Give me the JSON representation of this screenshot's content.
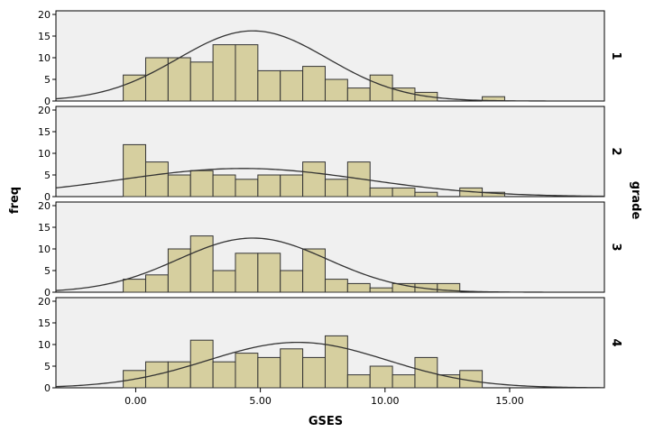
{
  "chart_data": {
    "type": "bar",
    "subtype": "faceted-histogram-with-normal-curve",
    "xlabel": "GSES",
    "ylabel": "freq",
    "facet_label": "grade",
    "xlim": [
      -3.2,
      18.8
    ],
    "ylim": [
      0,
      20
    ],
    "x_ticks": [
      0,
      5,
      10,
      15
    ],
    "x_tick_labels": [
      "0.00",
      "5.00",
      "10.00",
      "15.00"
    ],
    "y_ticks": [
      0,
      5,
      10,
      15,
      20
    ],
    "y_tick_labels": [
      "0",
      "5",
      "10",
      "15",
      "20"
    ],
    "bin_start": -0.5,
    "bin_width": 0.9,
    "colors": {
      "bar_fill": "#d6cf9f",
      "bar_stroke": "#333333",
      "panel_bg": "#f0f0f0",
      "curve": "#333333"
    },
    "panels": [
      {
        "label": "1",
        "counts": [
          6,
          10,
          10,
          9,
          13,
          13,
          7,
          7,
          8,
          5,
          3,
          6,
          3,
          2,
          0,
          0,
          1
        ],
        "normal_curve": {
          "mean": 4.7,
          "peak": 16.2,
          "sd": 3.0
        }
      },
      {
        "label": "2",
        "counts": [
          12,
          8,
          5,
          6,
          5,
          4,
          5,
          5,
          8,
          4,
          8,
          2,
          2,
          1,
          0,
          2,
          1
        ],
        "normal_curve": {
          "mean": 4.3,
          "peak": 6.5,
          "sd": 4.9
        }
      },
      {
        "label": "3",
        "counts": [
          3,
          4,
          10,
          13,
          5,
          9,
          9,
          5,
          10,
          3,
          2,
          1,
          2,
          2,
          2
        ],
        "normal_curve": {
          "mean": 4.7,
          "peak": 12.5,
          "sd": 3.0
        }
      },
      {
        "label": "4",
        "counts": [
          4,
          6,
          6,
          11,
          6,
          8,
          7,
          9,
          7,
          12,
          3,
          5,
          3,
          7,
          3,
          4
        ],
        "normal_curve": {
          "mean": 6.5,
          "peak": 10.5,
          "sd": 3.6
        }
      }
    ]
  }
}
